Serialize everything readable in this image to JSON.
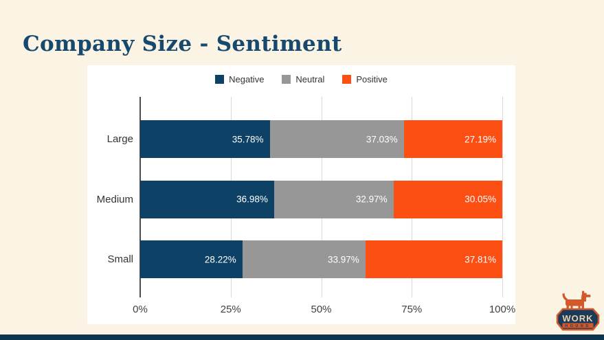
{
  "page": {
    "title": "Company Size - Sentiment"
  },
  "colors": {
    "background": "#FBF3E3",
    "panel": "#FFFFFF",
    "title": "#17496F",
    "negative": "#0D4166",
    "neutral": "#979797",
    "positive": "#FB4F14",
    "bottom_strip": "#0D3550",
    "gridline": "#D9D9D9",
    "axis_line": "#4D4D4D",
    "axis_text": "#404040",
    "value_label_text": "#FFFFFF"
  },
  "chart_data": {
    "type": "bar",
    "stacked": true,
    "orientation": "horizontal",
    "title": "Company Size - Sentiment",
    "categories": [
      "Large",
      "Medium",
      "Small"
    ],
    "series": [
      {
        "name": "Negative",
        "color": "#0D4166",
        "values": [
          35.78,
          36.98,
          28.22
        ]
      },
      {
        "name": "Neutral",
        "color": "#979797",
        "values": [
          37.03,
          32.97,
          33.97
        ]
      },
      {
        "name": "Positive",
        "color": "#FB4F14",
        "values": [
          27.19,
          30.05,
          37.81
        ]
      }
    ],
    "value_labels": [
      [
        "35.78%",
        "37.03%",
        "27.19%"
      ],
      [
        "36.98%",
        "32.97%",
        "30.05%"
      ],
      [
        "28.22%",
        "33.97%",
        "37.81%"
      ]
    ],
    "x_ticks": [
      "0%",
      "25%",
      "50%",
      "75%",
      "100%"
    ],
    "xlim": [
      0,
      100
    ],
    "xlabel": "",
    "ylabel": "",
    "legend_position": "top",
    "grid": "vertical"
  },
  "logo": {
    "badge_line1": "WORK",
    "badge_line2": "HOUND"
  }
}
